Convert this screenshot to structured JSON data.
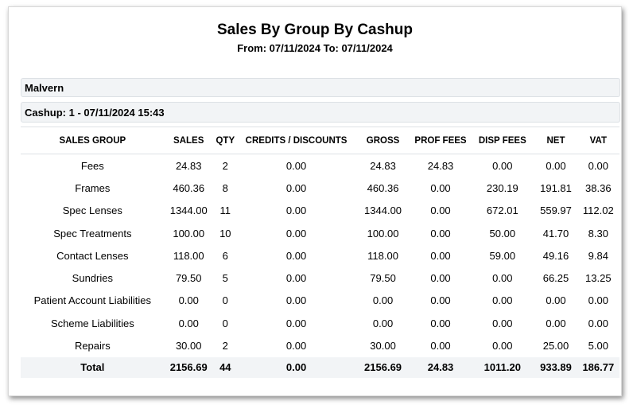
{
  "report": {
    "title": "Sales By Group By Cashup",
    "subtitle": "From: 07/11/2024 To: 07/11/2024",
    "branch": "Malvern",
    "cashup": "Cashup: 1 - 07/11/2024 15:43"
  },
  "columns": {
    "group": "SALES GROUP",
    "sales": "SALES",
    "qty": "QTY",
    "credits": "CREDITS / DISCOUNTS",
    "gross": "GROSS",
    "prof": "PROF FEES",
    "disp": "DISP FEES",
    "net": "NET",
    "vat": "VAT"
  },
  "rows": [
    {
      "group": "Fees",
      "sales": "24.83",
      "qty": "2",
      "credits": "0.00",
      "gross": "24.83",
      "prof": "24.83",
      "disp": "0.00",
      "net": "0.00",
      "vat": "0.00"
    },
    {
      "group": "Frames",
      "sales": "460.36",
      "qty": "8",
      "credits": "0.00",
      "gross": "460.36",
      "prof": "0.00",
      "disp": "230.19",
      "net": "191.81",
      "vat": "38.36"
    },
    {
      "group": "Spec Lenses",
      "sales": "1344.00",
      "qty": "11",
      "credits": "0.00",
      "gross": "1344.00",
      "prof": "0.00",
      "disp": "672.01",
      "net": "559.97",
      "vat": "112.02"
    },
    {
      "group": "Spec Treatments",
      "sales": "100.00",
      "qty": "10",
      "credits": "0.00",
      "gross": "100.00",
      "prof": "0.00",
      "disp": "50.00",
      "net": "41.70",
      "vat": "8.30"
    },
    {
      "group": "Contact Lenses",
      "sales": "118.00",
      "qty": "6",
      "credits": "0.00",
      "gross": "118.00",
      "prof": "0.00",
      "disp": "59.00",
      "net": "49.16",
      "vat": "9.84"
    },
    {
      "group": "Sundries",
      "sales": "79.50",
      "qty": "5",
      "credits": "0.00",
      "gross": "79.50",
      "prof": "0.00",
      "disp": "0.00",
      "net": "66.25",
      "vat": "13.25"
    },
    {
      "group": "Patient Account Liabilities",
      "sales": "0.00",
      "qty": "0",
      "credits": "0.00",
      "gross": "0.00",
      "prof": "0.00",
      "disp": "0.00",
      "net": "0.00",
      "vat": "0.00"
    },
    {
      "group": "Scheme Liabilities",
      "sales": "0.00",
      "qty": "0",
      "credits": "0.00",
      "gross": "0.00",
      "prof": "0.00",
      "disp": "0.00",
      "net": "0.00",
      "vat": "0.00"
    },
    {
      "group": "Repairs",
      "sales": "30.00",
      "qty": "2",
      "credits": "0.00",
      "gross": "30.00",
      "prof": "0.00",
      "disp": "0.00",
      "net": "25.00",
      "vat": "5.00"
    }
  ],
  "total": {
    "group": "Total",
    "sales": "2156.69",
    "qty": "44",
    "credits": "0.00",
    "gross": "2156.69",
    "prof": "24.83",
    "disp": "1011.20",
    "net": "933.89",
    "vat": "186.77"
  }
}
